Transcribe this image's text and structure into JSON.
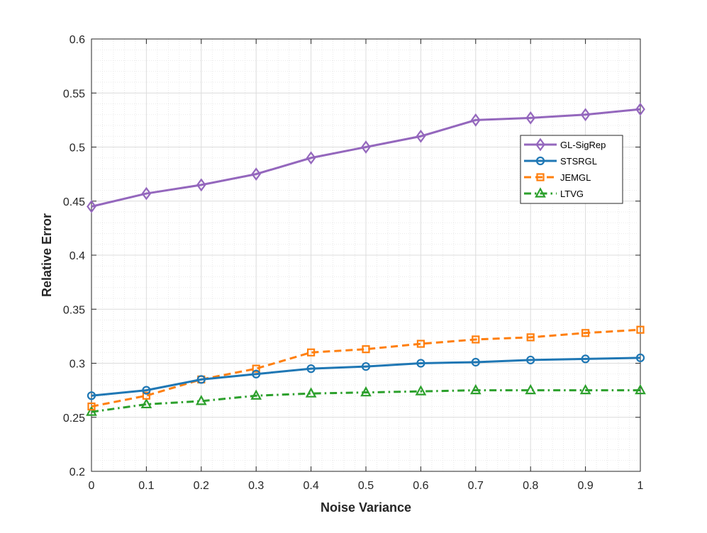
{
  "chart_data": {
    "type": "line",
    "title": "",
    "xlabel": "Noise Variance",
    "ylabel": "Relative Error",
    "xlim": [
      0,
      1
    ],
    "ylim": [
      0.2,
      0.6
    ],
    "x": [
      0,
      0.1,
      0.2,
      0.3,
      0.4,
      0.5,
      0.6,
      0.7,
      0.8,
      0.9,
      1
    ],
    "xticks": [
      0,
      0.1,
      0.2,
      0.3,
      0.4,
      0.5,
      0.6,
      0.7,
      0.8,
      0.9,
      1
    ],
    "xtick_labels": [
      "0",
      "0.1",
      "0.2",
      "0.3",
      "0.4",
      "0.5",
      "0.6",
      "0.7",
      "0.8",
      "0.9",
      "1"
    ],
    "yticks": [
      0.2,
      0.25,
      0.3,
      0.35,
      0.4,
      0.45,
      0.5,
      0.55,
      0.6
    ],
    "ytick_labels": [
      "0.2",
      "0.25",
      "0.3",
      "0.35",
      "0.4",
      "0.45",
      "0.5",
      "0.55",
      "0.6"
    ],
    "grid": true,
    "minor_grid": true,
    "legend_position": "right",
    "series": [
      {
        "name": "GL-SigRep",
        "color": "#9467bd",
        "marker": "diamond",
        "line_style": "solid",
        "values": [
          0.445,
          0.457,
          0.465,
          0.475,
          0.49,
          0.5,
          0.51,
          0.525,
          0.527,
          0.53,
          0.535
        ]
      },
      {
        "name": "STSRGL",
        "color": "#1f77b4",
        "marker": "circle",
        "line_style": "solid",
        "values": [
          0.27,
          0.275,
          0.285,
          0.29,
          0.295,
          0.297,
          0.3,
          0.301,
          0.303,
          0.304,
          0.305
        ]
      },
      {
        "name": "JEMGL",
        "color": "#ff7f0e",
        "marker": "square",
        "line_style": "dashed",
        "values": [
          0.26,
          0.27,
          0.285,
          0.295,
          0.31,
          0.313,
          0.318,
          0.322,
          0.324,
          0.328,
          0.331
        ]
      },
      {
        "name": "LTVG",
        "color": "#2ca02c",
        "marker": "triangle",
        "line_style": "dashdot",
        "values": [
          0.255,
          0.262,
          0.265,
          0.27,
          0.272,
          0.273,
          0.274,
          0.275,
          0.275,
          0.275,
          0.275
        ]
      }
    ]
  }
}
